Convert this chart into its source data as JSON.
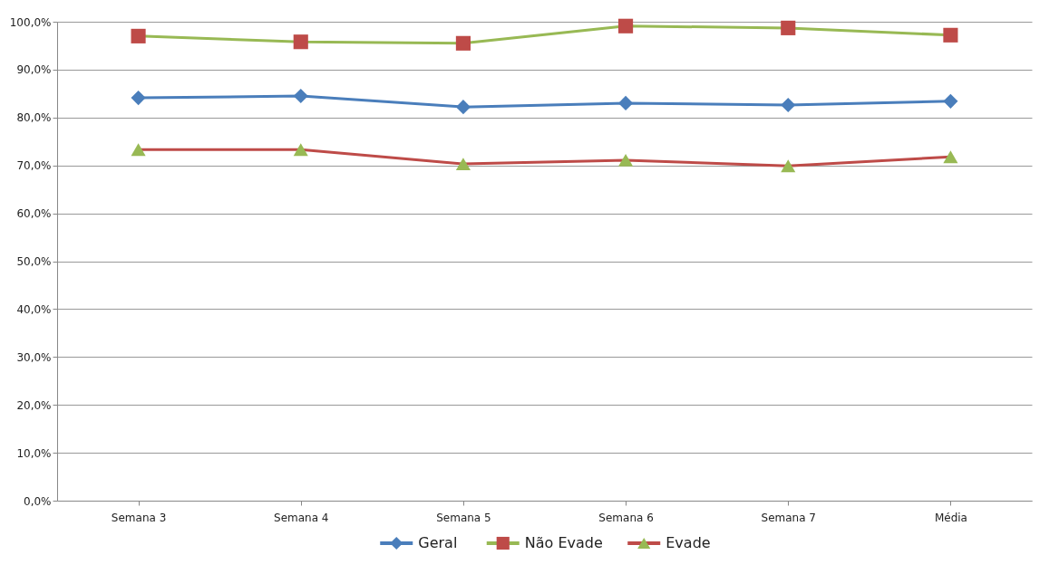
{
  "chart_data": {
    "type": "line",
    "categories": [
      "Semana 3",
      "Semana 4",
      "Semana 5",
      "Semana 6",
      "Semana 7",
      "Média"
    ],
    "series": [
      {
        "name": "Geral",
        "color": "#4a7ebb",
        "colors": [
          "#4a7ebb",
          "#4a7ebb",
          "#4a7ebb",
          "#4a7ebb",
          "#4a7ebb",
          "#4a7ebb"
        ],
        "marker": "diamond",
        "values": [
          84.1,
          84.5,
          82.2,
          83.0,
          82.6,
          83.4
        ]
      },
      {
        "name": "Não Evade",
        "color": "#98b954",
        "colors": [
          "#be4b48",
          "#be4b48",
          "#be4b48",
          "#be4b48",
          "#be4b48",
          "#be4b48"
        ],
        "marker": "square",
        "values": [
          97.0,
          95.8,
          95.5,
          99.1,
          98.7,
          97.2
        ]
      },
      {
        "name": "Evade",
        "color": "#be4b48",
        "colors": [
          "#98b954",
          "#98b954",
          "#98b954",
          "#98b954",
          "#98b954",
          "#98b954"
        ],
        "marker": "triangle",
        "values": [
          73.3,
          73.3,
          70.3,
          71.1,
          69.9,
          71.8
        ]
      }
    ],
    "ylim": [
      0,
      100
    ],
    "yticks": [
      {
        "value": 0,
        "label": "0,0%"
      },
      {
        "value": 10,
        "label": "10,0%"
      },
      {
        "value": 20,
        "label": "20,0%"
      },
      {
        "value": 30,
        "label": "30,0%"
      },
      {
        "value": 40,
        "label": "40,0%"
      },
      {
        "value": 50,
        "label": "50,0%"
      },
      {
        "value": 60,
        "label": "60,0%"
      },
      {
        "value": 70,
        "label": "70,0%"
      },
      {
        "value": 80,
        "label": "80,0%"
      },
      {
        "value": 90,
        "label": "90,0%"
      },
      {
        "value": 100,
        "label": "100,0%"
      }
    ],
    "grid": "y",
    "legend": "bottom",
    "line_style": "solid"
  }
}
